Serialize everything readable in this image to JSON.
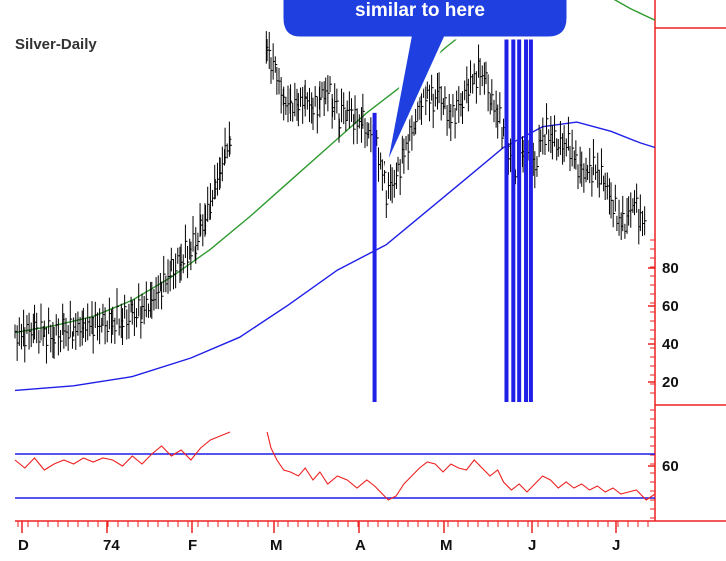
{
  "chart_data": {
    "type": "line",
    "title": "Silver-Daily",
    "annotation": "similar to here",
    "x_month_labels": [
      "D",
      "74",
      "F",
      "M",
      "A",
      "M",
      "J",
      "J"
    ],
    "price_axis_ticks": [
      80,
      60,
      40,
      20
    ],
    "oscillator_axis_ticks": [
      60
    ],
    "colors": {
      "price_bars": "#000000",
      "ma_short": "#2e9a2e",
      "ma_long": "#1f1fe8",
      "volume_bars": "#1f1fe8",
      "oscillator": "#ee2020",
      "oscillator_bands": "#1f1fe8",
      "axis": "#ee2020",
      "callout": "#1f3fe0"
    },
    "series": [
      {
        "name": "price",
        "points": [
          [
            0,
            28
          ],
          [
            10,
            30
          ],
          [
            20,
            31
          ],
          [
            30,
            30
          ],
          [
            40,
            29
          ],
          [
            50,
            30
          ],
          [
            60,
            31
          ],
          [
            70,
            33
          ],
          [
            80,
            34
          ],
          [
            90,
            33
          ],
          [
            100,
            35
          ],
          [
            110,
            36
          ],
          [
            120,
            37
          ],
          [
            130,
            40
          ],
          [
            140,
            44
          ],
          [
            150,
            50
          ],
          [
            160,
            56
          ],
          [
            170,
            62
          ],
          [
            180,
            66
          ],
          [
            185,
            69
          ],
          [
            190,
            74
          ],
          [
            195,
            80
          ],
          [
            200,
            86
          ],
          [
            205,
            93
          ],
          [
            210,
            100
          ],
          [
            215,
            107
          ],
          [
            220,
            114
          ],
          [
            225,
            122
          ],
          [
            230,
            130
          ],
          [
            235,
            138
          ],
          [
            240,
            142
          ],
          [
            245,
            147
          ],
          [
            250,
            150
          ],
          [
            255,
            156
          ],
          [
            258,
            153
          ],
          [
            262,
            148
          ],
          [
            268,
            141
          ],
          [
            275,
            129
          ],
          [
            282,
            128
          ],
          [
            290,
            128
          ],
          [
            297,
            131
          ],
          [
            305,
            126
          ],
          [
            312,
            130
          ],
          [
            318,
            136
          ],
          [
            325,
            131
          ],
          [
            332,
            124
          ],
          [
            340,
            127
          ],
          [
            348,
            122
          ],
          [
            356,
            120
          ],
          [
            362,
            117
          ],
          [
            368,
            112
          ],
          [
            372,
            106
          ],
          [
            376,
            100
          ],
          [
            380,
            91
          ],
          [
            386,
            93
          ],
          [
            392,
            100
          ],
          [
            398,
            107
          ],
          [
            404,
            114
          ],
          [
            410,
            123
          ],
          [
            416,
            131
          ],
          [
            422,
            134
          ],
          [
            428,
            130
          ],
          [
            434,
            133
          ],
          [
            440,
            128
          ],
          [
            446,
            122
          ],
          [
            452,
            127
          ],
          [
            458,
            131
          ],
          [
            464,
            136
          ],
          [
            470,
            140
          ],
          [
            476,
            143
          ],
          [
            482,
            138
          ],
          [
            488,
            130
          ],
          [
            494,
            124
          ],
          [
            500,
            117
          ],
          [
            505,
            109
          ],
          [
            510,
            99
          ],
          [
            515,
            103
          ],
          [
            520,
            112
          ],
          [
            526,
            107
          ],
          [
            532,
            101
          ],
          [
            538,
            112
          ],
          [
            544,
            117
          ],
          [
            550,
            115
          ],
          [
            556,
            110
          ],
          [
            562,
            113
          ],
          [
            568,
            110
          ],
          [
            574,
            103
          ],
          [
            580,
            100
          ],
          [
            586,
            98
          ],
          [
            592,
            102
          ],
          [
            598,
            99
          ],
          [
            604,
            94
          ],
          [
            610,
            88
          ],
          [
            616,
            80
          ],
          [
            622,
            76
          ],
          [
            628,
            82
          ],
          [
            634,
            86
          ],
          [
            640,
            80
          ],
          [
            646,
            75
          ]
        ]
      },
      {
        "name": "ma_short",
        "points": [
          [
            0,
            30
          ],
          [
            40,
            33
          ],
          [
            80,
            37
          ],
          [
            120,
            44
          ],
          [
            160,
            54
          ],
          [
            200,
            66
          ],
          [
            240,
            80
          ],
          [
            280,
            95
          ],
          [
            320,
            110
          ],
          [
            360,
            125
          ],
          [
            400,
            138
          ],
          [
            440,
            153
          ],
          [
            470,
            163
          ],
          [
            500,
            170
          ],
          [
            540,
            178
          ],
          [
            575,
            181
          ],
          [
            605,
            176
          ],
          [
            630,
            170
          ],
          [
            655,
            165
          ]
        ]
      },
      {
        "name": "ma_long",
        "points": [
          [
            0,
            5
          ],
          [
            60,
            7
          ],
          [
            120,
            11
          ],
          [
            180,
            19
          ],
          [
            230,
            28
          ],
          [
            280,
            42
          ],
          [
            330,
            57
          ],
          [
            380,
            68
          ],
          [
            420,
            82
          ],
          [
            460,
            96
          ],
          [
            500,
            110
          ],
          [
            540,
            119
          ],
          [
            575,
            121
          ],
          [
            610,
            117
          ],
          [
            640,
            112
          ],
          [
            655,
            110
          ]
        ]
      },
      {
        "name": "volume",
        "bars": [
          [
            368,
            40
          ],
          [
            503,
            45
          ],
          [
            510,
            42
          ],
          [
            516,
            45
          ],
          [
            523,
            40
          ],
          [
            528,
            43
          ]
        ]
      },
      {
        "name": "oscillator",
        "points": [
          [
            0,
            60
          ],
          [
            10,
            56
          ],
          [
            20,
            61
          ],
          [
            30,
            55
          ],
          [
            40,
            58
          ],
          [
            50,
            60
          ],
          [
            60,
            58
          ],
          [
            70,
            61
          ],
          [
            80,
            59
          ],
          [
            90,
            61
          ],
          [
            100,
            60
          ],
          [
            110,
            57
          ],
          [
            120,
            62
          ],
          [
            130,
            58
          ],
          [
            140,
            63
          ],
          [
            150,
            67
          ],
          [
            160,
            62
          ],
          [
            170,
            65
          ],
          [
            180,
            60
          ],
          [
            190,
            66
          ],
          [
            200,
            70
          ],
          [
            210,
            72
          ],
          [
            220,
            74
          ],
          [
            258,
            74
          ],
          [
            262,
            66
          ],
          [
            268,
            60
          ],
          [
            275,
            55
          ],
          [
            282,
            54
          ],
          [
            290,
            52
          ],
          [
            297,
            56
          ],
          [
            305,
            50
          ],
          [
            312,
            54
          ],
          [
            320,
            48
          ],
          [
            330,
            52
          ],
          [
            340,
            50
          ],
          [
            350,
            46
          ],
          [
            360,
            50
          ],
          [
            368,
            47
          ],
          [
            376,
            43
          ],
          [
            382,
            40
          ],
          [
            390,
            42
          ],
          [
            398,
            48
          ],
          [
            406,
            52
          ],
          [
            414,
            56
          ],
          [
            422,
            59
          ],
          [
            430,
            58
          ],
          [
            438,
            54
          ],
          [
            446,
            58
          ],
          [
            454,
            56
          ],
          [
            462,
            55
          ],
          [
            470,
            60
          ],
          [
            478,
            56
          ],
          [
            486,
            52
          ],
          [
            494,
            55
          ],
          [
            500,
            49
          ],
          [
            508,
            45
          ],
          [
            516,
            48
          ],
          [
            524,
            44
          ],
          [
            532,
            48
          ],
          [
            540,
            52
          ],
          [
            548,
            50
          ],
          [
            556,
            46
          ],
          [
            564,
            49
          ],
          [
            572,
            46
          ],
          [
            580,
            48
          ],
          [
            588,
            45
          ],
          [
            596,
            47
          ],
          [
            604,
            44
          ],
          [
            612,
            46
          ],
          [
            620,
            43
          ],
          [
            628,
            44
          ],
          [
            636,
            45
          ],
          [
            646,
            40
          ],
          [
            655,
            43
          ]
        ]
      }
    ],
    "oscillator_bands": [
      63,
      41
    ],
    "gaps": [
      [
        222,
        256
      ]
    ],
    "grid": false,
    "legend": "none"
  }
}
